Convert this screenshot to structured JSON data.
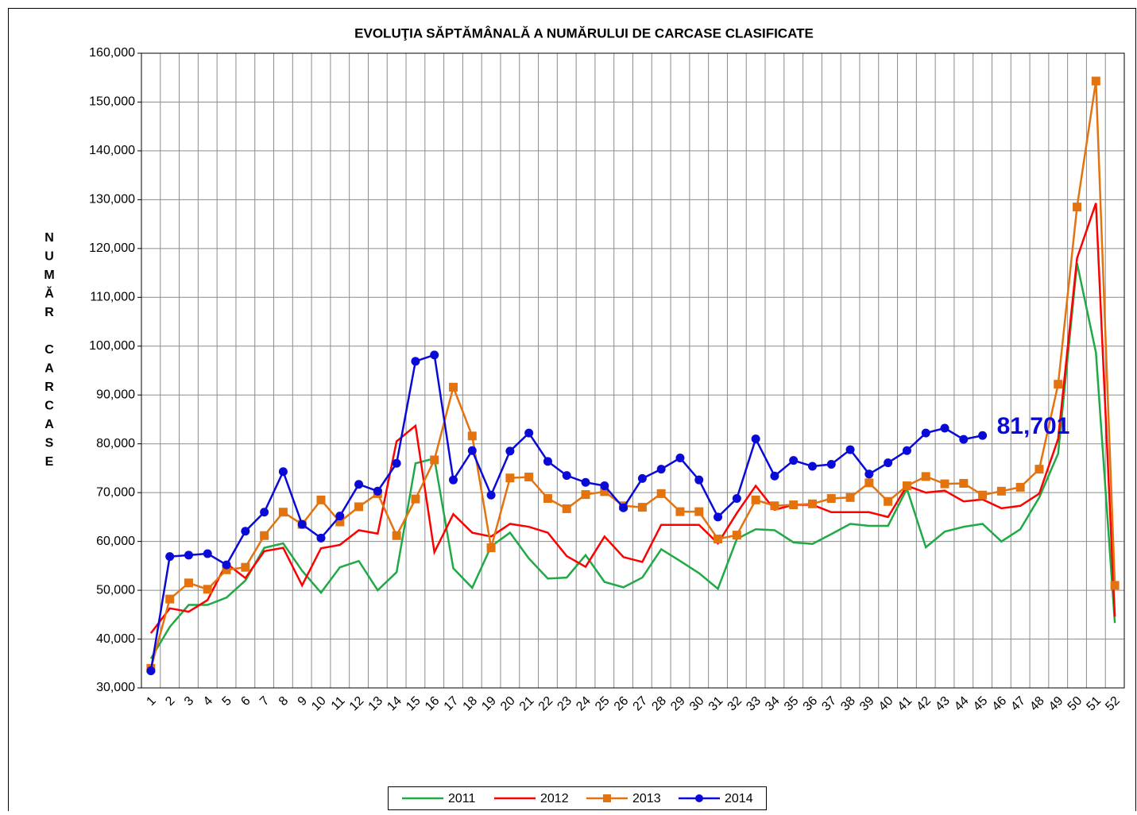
{
  "chart_data": {
    "type": "line",
    "title": "EVOLUŢIA SĂPTĂMÂNALĂ A NUMĂRULUI DE CARCASE  CLASIFICATE",
    "ylabel": "NUMĂR CARCASE",
    "categories": [
      "1",
      "2",
      "3",
      "4",
      "5",
      "6",
      "7",
      "8",
      "9",
      "10",
      "11",
      "12",
      "13",
      "14",
      "15",
      "16",
      "17",
      "18",
      "19",
      "20",
      "21",
      "22",
      "23",
      "24",
      "25",
      "26",
      "27",
      "28",
      "29",
      "30",
      "31",
      "32",
      "33",
      "34",
      "35",
      "36",
      "37",
      "38",
      "39",
      "40",
      "41",
      "42",
      "43",
      "44",
      "45",
      "46",
      "47",
      "48",
      "49",
      "50",
      "51",
      "52"
    ],
    "ylim": [
      30000,
      160000
    ],
    "yticks": [
      {
        "value": 30000,
        "label": "30,000"
      },
      {
        "value": 40000,
        "label": "40,000"
      },
      {
        "value": 50000,
        "label": "50,000"
      },
      {
        "value": 60000,
        "label": "60,000"
      },
      {
        "value": 70000,
        "label": "70,000"
      },
      {
        "value": 80000,
        "label": "80,000"
      },
      {
        "value": 90000,
        "label": "90,000"
      },
      {
        "value": 100000,
        "label": "100,000"
      },
      {
        "value": 110000,
        "label": "110,000"
      },
      {
        "value": 120000,
        "label": "120,000"
      },
      {
        "value": 130000,
        "label": "130,000"
      },
      {
        "value": 140000,
        "label": "140,000"
      },
      {
        "value": 150000,
        "label": "150,000"
      },
      {
        "value": 160000,
        "label": "160,000"
      }
    ],
    "grid": true,
    "legend": "bottom",
    "series": [
      {
        "name": "2011",
        "color": "#1faa45",
        "marker": "none",
        "values": [
          36000,
          42500,
          47000,
          47000,
          48500,
          52000,
          58700,
          59600,
          54000,
          49500,
          54700,
          56000,
          50000,
          53700,
          76000,
          77000,
          54500,
          50500,
          59000,
          61800,
          56500,
          52400,
          52600,
          57200,
          51700,
          50600,
          52600,
          58400,
          56000,
          53500,
          50300,
          60500,
          62500,
          62300,
          59800,
          59500,
          61500,
          63600,
          63200,
          63200,
          70800,
          58800,
          62000,
          63000,
          63600,
          60000,
          62500,
          69000,
          78000,
          117000,
          98700,
          43300
        ]
      },
      {
        "name": "2012",
        "color": "#ff0000",
        "marker": "none",
        "values": [
          41200,
          46300,
          45600,
          48000,
          55500,
          52500,
          58000,
          58700,
          51000,
          58600,
          59300,
          62300,
          61600,
          80500,
          83700,
          57800,
          65600,
          61800,
          61000,
          63600,
          63000,
          61800,
          57000,
          54800,
          61000,
          56800,
          55800,
          63400,
          63400,
          63400,
          59600,
          65800,
          71400,
          66500,
          67500,
          67500,
          66000,
          66000,
          66000,
          65000,
          71400,
          70000,
          70400,
          68200,
          68600,
          66800,
          67300,
          69800,
          81000,
          118000,
          129300,
          44600
        ]
      },
      {
        "name": "2013",
        "color": "#e3730f",
        "marker": "square",
        "values": [
          34000,
          48200,
          51500,
          50200,
          54200,
          54700,
          61200,
          66000,
          63500,
          68500,
          64000,
          67100,
          69800,
          61200,
          68700,
          76700,
          91600,
          81600,
          58700,
          73000,
          73200,
          68800,
          66700,
          69600,
          70200,
          67300,
          67000,
          69800,
          66100,
          66100,
          60500,
          61300,
          68500,
          67300,
          67500,
          67700,
          68800,
          69000,
          72000,
          68200,
          71400,
          73300,
          71800,
          71900,
          69500,
          70300,
          71100,
          74800,
          92200,
          128500,
          154300,
          51000
        ]
      },
      {
        "name": "2014",
        "color": "#0a0ad8",
        "marker": "circle",
        "values": [
          33500,
          56900,
          57200,
          57500,
          55200,
          62100,
          66000,
          74300,
          63500,
          60700,
          65200,
          71700,
          70300,
          76000,
          96900,
          98200,
          72600,
          78600,
          69500,
          78500,
          82200,
          76400,
          73500,
          72100,
          71400,
          66900,
          72900,
          74800,
          77100,
          72600,
          65000,
          68800,
          81000,
          73400,
          76600,
          75400,
          75800,
          78800,
          73800,
          76100,
          78600,
          82200,
          83200,
          80900,
          81701,
          null,
          null,
          null,
          null,
          null,
          null,
          null
        ],
        "value_labels": [
          null,
          null,
          null,
          null,
          null,
          null,
          null,
          null,
          null,
          null,
          null,
          null,
          null,
          null,
          null,
          null,
          null,
          null,
          null,
          null,
          null,
          null,
          null,
          null,
          null,
          null,
          null,
          null,
          null,
          null,
          null,
          null,
          null,
          null,
          null,
          null,
          null,
          null,
          null,
          null,
          null,
          null,
          null,
          null,
          "81,701",
          null,
          null,
          null,
          null,
          null,
          null,
          null
        ]
      }
    ]
  }
}
